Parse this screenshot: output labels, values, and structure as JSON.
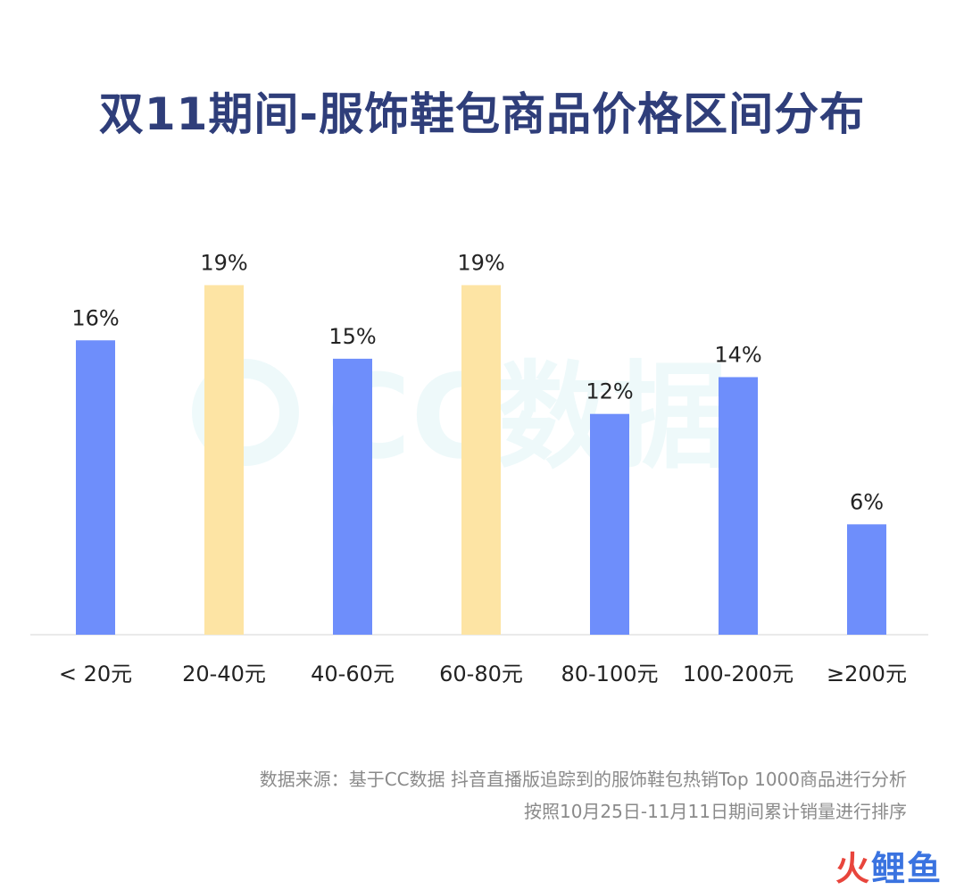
{
  "title": "双11期间-服饰鞋包商品价格区间分布",
  "watermark": {
    "text": "CC数据"
  },
  "source": {
    "line1": "数据来源：基于CC数据 抖音直播版追踪到的服饰鞋包热销Top 1000商品进行分析",
    "line2": "按照10月25日-11月11日期间累计销量进行排序"
  },
  "logo": {
    "part1": "火",
    "part2": "鲤鱼"
  },
  "colors": {
    "blue": "#6e8efb",
    "yellow": "#fde4a4",
    "title": "#2f3e7a"
  },
  "chart_data": {
    "type": "bar",
    "title": "双11期间-服饰鞋包商品价格区间分布",
    "xlabel": "",
    "ylabel": "",
    "categories": [
      "< 20元",
      "20-40元",
      "40-60元",
      "60-80元",
      "80-100元",
      "100-200元",
      "≥200元"
    ],
    "values": [
      16,
      19,
      15,
      19,
      12,
      14,
      6
    ],
    "value_labels": [
      "16%",
      "19%",
      "15%",
      "19%",
      "12%",
      "14%",
      "6%"
    ],
    "highlight": [
      false,
      true,
      false,
      true,
      false,
      false,
      false
    ],
    "unit": "%",
    "ylim": [
      0,
      19.7
    ],
    "grid": false,
    "legend": "none"
  }
}
